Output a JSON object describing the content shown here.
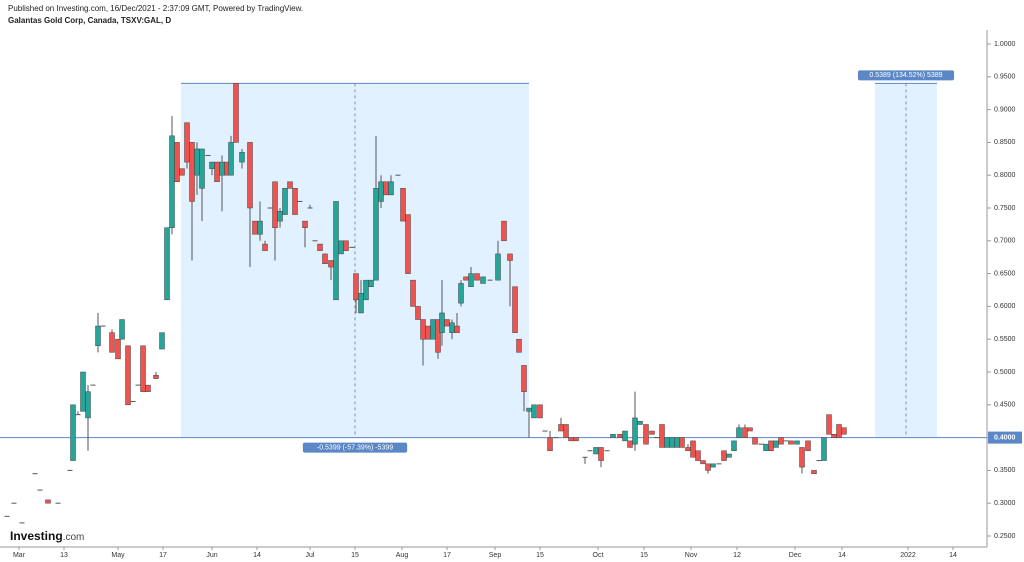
{
  "header": {
    "published": "Published on Investing.com, 16/Dec/2021 - 2:37:09 GMT, Powered by TradingView.",
    "instrument": "Galantas Gold Corp, Canada, TSXV:GAL, D"
  },
  "logo": {
    "brand": "Investing",
    "suffix": ".com"
  },
  "chart_data": {
    "type": "candlestick",
    "up_color": "#26a69a",
    "down_color": "#ef5350",
    "flat_color": "#555555",
    "xlim": [
      0,
      196
    ],
    "ylim": [
      0.25,
      1.0
    ],
    "yticks": [
      {
        "value": 0.25,
        "label": "0.2500"
      },
      {
        "value": 0.3,
        "label": "0.3000"
      },
      {
        "value": 0.35,
        "label": "0.3500"
      },
      {
        "value": 0.4,
        "label": "0.4000"
      },
      {
        "value": 0.45,
        "label": "0.4500"
      },
      {
        "value": 0.5,
        "label": "0.5000"
      },
      {
        "value": 0.55,
        "label": "0.5500"
      },
      {
        "value": 0.6,
        "label": "0.6000"
      },
      {
        "value": 0.65,
        "label": "0.6500"
      },
      {
        "value": 0.7,
        "label": "0.7000"
      },
      {
        "value": 0.75,
        "label": "0.7500"
      },
      {
        "value": 0.8,
        "label": "0.8000"
      },
      {
        "value": 0.85,
        "label": "0.8500"
      },
      {
        "value": 0.9,
        "label": "0.9000"
      },
      {
        "value": 0.95,
        "label": "0.9500"
      },
      {
        "value": 1.0,
        "label": "1.0000"
      }
    ],
    "xticks": [
      {
        "value": 2.8,
        "label": "Mar"
      },
      {
        "value": 11.8,
        "label": "13"
      },
      {
        "value": 22.6,
        "label": "May"
      },
      {
        "value": 31.6,
        "label": "17"
      },
      {
        "value": 41.4,
        "label": "Jun"
      },
      {
        "value": 50.4,
        "label": "14"
      },
      {
        "value": 61,
        "label": "Jul"
      },
      {
        "value": 70,
        "label": "15"
      },
      {
        "value": 79.4,
        "label": "Aug"
      },
      {
        "value": 88.4,
        "label": "17"
      },
      {
        "value": 98,
        "label": "Sep"
      },
      {
        "value": 107,
        "label": "15"
      },
      {
        "value": 118.6,
        "label": "Oct"
      },
      {
        "value": 127.8,
        "label": "15"
      },
      {
        "value": 137.2,
        "label": "Nov"
      },
      {
        "value": 146.4,
        "label": "12"
      },
      {
        "value": 158,
        "label": "Dec"
      },
      {
        "value": 167.4,
        "label": "14"
      },
      {
        "value": 180.6,
        "label": "2022"
      },
      {
        "value": 189.6,
        "label": "14"
      }
    ],
    "last_price": {
      "value": 0.4,
      "label": "0.4000"
    },
    "ranges": [
      {
        "x": [
          35.2,
          104.8
        ],
        "y": [
          0.94,
          0.4
        ],
        "label": "-0.5399 (-57.39%) -5399",
        "label_pos": "bottom"
      },
      {
        "x": [
          174,
          186.4
        ],
        "y": [
          0.94,
          0.4
        ],
        "label": "0.5389 (134.52%) 5389",
        "label_pos": "top"
      }
    ],
    "candles": [
      [
        0.4,
        0.28,
        0.28,
        0.28,
        0.28
      ],
      [
        1.8,
        0.3,
        0.3,
        0.3,
        0.3
      ],
      [
        3.4,
        0.27,
        0.27,
        0.27,
        0.27
      ],
      [
        6,
        0.345,
        0.345,
        0.345,
        0.345
      ],
      [
        7,
        0.32,
        0.32,
        0.32,
        0.32
      ],
      [
        8.6,
        0.305,
        0.305,
        0.3,
        0.3
      ],
      [
        10.6,
        0.3,
        0.3,
        0.3,
        0.3
      ],
      [
        13,
        0.35,
        0.35,
        0.35,
        0.35
      ],
      [
        13.6,
        0.365,
        0.45,
        0.365,
        0.45
      ],
      [
        14.6,
        0.435,
        0.44,
        0.435,
        0.435
      ],
      [
        15.6,
        0.44,
        0.5,
        0.44,
        0.5
      ],
      [
        16.6,
        0.43,
        0.48,
        0.38,
        0.47
      ],
      [
        17.6,
        0.48,
        0.48,
        0.48,
        0.48
      ],
      [
        18.6,
        0.54,
        0.59,
        0.53,
        0.57
      ],
      [
        19.6,
        0.57,
        0.57,
        0.57,
        0.57
      ],
      [
        21.4,
        0.56,
        0.565,
        0.53,
        0.53
      ],
      [
        22.6,
        0.55,
        0.55,
        0.52,
        0.52
      ],
      [
        23.4,
        0.55,
        0.58,
        0.55,
        0.58
      ],
      [
        24.6,
        0.54,
        0.54,
        0.45,
        0.45
      ],
      [
        25.6,
        0.455,
        0.455,
        0.455,
        0.455
      ],
      [
        26.6,
        0.48,
        0.48,
        0.48,
        0.48
      ],
      [
        27.6,
        0.54,
        0.54,
        0.47,
        0.47
      ],
      [
        28.6,
        0.48,
        0.48,
        0.47,
        0.47
      ],
      [
        30.2,
        0.495,
        0.5,
        0.49,
        0.49
      ],
      [
        31.4,
        0.535,
        0.56,
        0.535,
        0.56
      ],
      [
        32.4,
        0.61,
        0.72,
        0.61,
        0.72
      ],
      [
        33.4,
        0.72,
        0.89,
        0.71,
        0.86
      ],
      [
        34.4,
        0.85,
        0.85,
        0.79,
        0.79
      ],
      [
        35.4,
        0.81,
        0.81,
        0.8,
        0.8
      ],
      [
        36.4,
        0.88,
        0.88,
        0.81,
        0.82
      ],
      [
        37.4,
        0.85,
        0.85,
        0.67,
        0.76
      ],
      [
        38.4,
        0.8,
        0.85,
        0.77,
        0.84
      ],
      [
        39.4,
        0.78,
        0.84,
        0.73,
        0.84
      ],
      [
        40.6,
        0.83,
        0.83,
        0.83,
        0.83
      ],
      [
        41.4,
        0.81,
        0.82,
        0.8,
        0.82
      ],
      [
        42.4,
        0.82,
        0.82,
        0.79,
        0.79
      ],
      [
        43.4,
        0.8,
        0.83,
        0.745,
        0.82
      ],
      [
        44.4,
        0.82,
        0.82,
        0.8,
        0.8
      ],
      [
        45.2,
        0.8,
        0.86,
        0.8,
        0.85
      ],
      [
        46.2,
        0.94,
        0.94,
        0.85,
        0.85
      ],
      [
        47.4,
        0.82,
        0.84,
        0.81,
        0.835
      ],
      [
        49,
        0.85,
        0.85,
        0.66,
        0.75
      ],
      [
        50,
        0.73,
        0.73,
        0.71,
        0.71
      ],
      [
        51,
        0.71,
        0.76,
        0.7,
        0.73
      ],
      [
        52,
        0.695,
        0.7,
        0.685,
        0.685
      ],
      [
        53,
        0.75,
        0.75,
        0.75,
        0.75
      ],
      [
        54,
        0.79,
        0.79,
        0.67,
        0.72
      ],
      [
        55,
        0.73,
        0.75,
        0.72,
        0.745
      ],
      [
        56,
        0.74,
        0.78,
        0.74,
        0.78
      ],
      [
        57,
        0.79,
        0.79,
        0.78,
        0.78
      ],
      [
        58,
        0.78,
        0.78,
        0.74,
        0.74
      ],
      [
        59,
        0.76,
        0.76,
        0.76,
        0.76
      ],
      [
        60,
        0.73,
        0.73,
        0.69,
        0.72
      ],
      [
        61,
        0.75,
        0.755,
        0.75,
        0.75
      ],
      [
        62,
        0.7,
        0.7,
        0.7,
        0.7
      ],
      [
        63,
        0.695,
        0.695,
        0.685,
        0.685
      ],
      [
        64,
        0.68,
        0.68,
        0.665,
        0.665
      ],
      [
        65.2,
        0.67,
        0.67,
        0.64,
        0.66
      ],
      [
        66.2,
        0.61,
        0.76,
        0.61,
        0.76
      ],
      [
        67.2,
        0.68,
        0.7,
        0.68,
        0.7
      ],
      [
        68.2,
        0.7,
        0.7,
        0.685,
        0.685
      ],
      [
        69.4,
        0.69,
        0.69,
        0.69,
        0.69
      ],
      [
        70.2,
        0.65,
        0.65,
        0.59,
        0.61
      ],
      [
        71.2,
        0.59,
        0.64,
        0.59,
        0.62
      ],
      [
        72.2,
        0.61,
        0.64,
        0.61,
        0.64
      ],
      [
        73.2,
        0.63,
        0.64,
        0.63,
        0.64
      ],
      [
        74.2,
        0.64,
        0.86,
        0.64,
        0.78
      ],
      [
        75.2,
        0.76,
        0.8,
        0.75,
        0.79
      ],
      [
        76.2,
        0.79,
        0.79,
        0.77,
        0.77
      ],
      [
        77.2,
        0.77,
        0.8,
        0.77,
        0.79
      ],
      [
        78.6,
        0.8,
        0.8,
        0.8,
        0.8
      ],
      [
        79.6,
        0.78,
        0.78,
        0.73,
        0.73
      ],
      [
        80.6,
        0.74,
        0.74,
        0.65,
        0.65
      ],
      [
        81.6,
        0.64,
        0.64,
        0.6,
        0.6
      ],
      [
        82.6,
        0.6,
        0.6,
        0.58,
        0.58
      ],
      [
        83.6,
        0.58,
        0.58,
        0.51,
        0.55
      ],
      [
        84.6,
        0.57,
        0.57,
        0.55,
        0.55
      ],
      [
        85.6,
        0.55,
        0.58,
        0.55,
        0.58
      ],
      [
        86.6,
        0.58,
        0.58,
        0.52,
        0.53
      ],
      [
        87.4,
        0.56,
        0.64,
        0.54,
        0.59
      ],
      [
        88.4,
        0.58,
        0.58,
        0.57,
        0.57
      ],
      [
        89.4,
        0.56,
        0.58,
        0.55,
        0.575
      ],
      [
        90.4,
        0.57,
        0.59,
        0.56,
        0.56
      ],
      [
        91.2,
        0.605,
        0.64,
        0.6,
        0.635
      ],
      [
        92.2,
        0.645,
        0.645,
        0.64,
        0.64
      ],
      [
        93.2,
        0.63,
        0.66,
        0.63,
        0.65
      ],
      [
        94.4,
        0.65,
        0.65,
        0.64,
        0.64
      ],
      [
        95.6,
        0.635,
        0.645,
        0.635,
        0.645
      ],
      [
        97,
        0.64,
        0.64,
        0.64,
        0.64
      ],
      [
        98.6,
        0.64,
        0.7,
        0.64,
        0.68
      ],
      [
        99.8,
        0.73,
        0.73,
        0.7,
        0.7
      ],
      [
        101,
        0.68,
        0.68,
        0.6,
        0.67
      ],
      [
        102,
        0.63,
        0.63,
        0.56,
        0.56
      ],
      [
        102.8,
        0.55,
        0.55,
        0.53,
        0.53
      ],
      [
        103.8,
        0.51,
        0.51,
        0.44,
        0.47
      ],
      [
        104.8,
        0.44,
        0.445,
        0.4,
        0.445
      ],
      [
        105.8,
        0.43,
        0.45,
        0.43,
        0.45
      ],
      [
        107,
        0.45,
        0.45,
        0.43,
        0.43
      ],
      [
        108,
        0.41,
        0.41,
        0.41,
        0.41
      ],
      [
        109,
        0.4,
        0.41,
        0.38,
        0.38
      ],
      [
        110.2,
        0.4,
        0.4,
        0.4,
        0.4
      ],
      [
        111.2,
        0.42,
        0.43,
        0.41,
        0.41
      ],
      [
        112.2,
        0.42,
        0.42,
        0.4,
        0.4
      ],
      [
        113.2,
        0.4,
        0.4,
        0.395,
        0.395
      ],
      [
        114.2,
        0.4,
        0.4,
        0.395,
        0.395
      ],
      [
        116,
        0.37,
        0.37,
        0.36,
        0.37
      ],
      [
        117,
        0.38,
        0.38,
        0.38,
        0.38
      ],
      [
        118.2,
        0.375,
        0.385,
        0.375,
        0.385
      ],
      [
        119.2,
        0.385,
        0.385,
        0.355,
        0.365
      ],
      [
        120.4,
        0.38,
        0.38,
        0.38,
        0.38
      ],
      [
        121.6,
        0.4,
        0.405,
        0.4,
        0.405
      ],
      [
        123,
        0.405,
        0.405,
        0.4,
        0.4
      ],
      [
        124,
        0.395,
        0.41,
        0.395,
        0.41
      ],
      [
        125,
        0.395,
        0.395,
        0.385,
        0.385
      ],
      [
        126,
        0.39,
        0.47,
        0.38,
        0.43
      ],
      [
        127,
        0.42,
        0.425,
        0.42,
        0.425
      ],
      [
        128.2,
        0.42,
        0.42,
        0.39,
        0.39
      ],
      [
        129.4,
        0.41,
        0.41,
        0.405,
        0.405
      ],
      [
        130.4,
        0.4,
        0.4,
        0.4,
        0.4
      ],
      [
        131.4,
        0.42,
        0.42,
        0.385,
        0.385
      ],
      [
        132.4,
        0.385,
        0.4,
        0.385,
        0.4
      ],
      [
        133.4,
        0.385,
        0.4,
        0.385,
        0.4
      ],
      [
        134.4,
        0.385,
        0.4,
        0.385,
        0.4
      ],
      [
        135.4,
        0.4,
        0.4,
        0.385,
        0.385
      ],
      [
        136.6,
        0.385,
        0.39,
        0.38,
        0.38
      ],
      [
        137.6,
        0.395,
        0.395,
        0.37,
        0.37
      ],
      [
        138.6,
        0.38,
        0.38,
        0.365,
        0.365
      ],
      [
        139.6,
        0.365,
        0.365,
        0.36,
        0.36
      ],
      [
        140.6,
        0.36,
        0.36,
        0.345,
        0.35
      ],
      [
        141.6,
        0.355,
        0.36,
        0.355,
        0.36
      ],
      [
        142.8,
        0.36,
        0.36,
        0.36,
        0.36
      ],
      [
        143.8,
        0.38,
        0.38,
        0.365,
        0.365
      ],
      [
        144.8,
        0.37,
        0.375,
        0.37,
        0.375
      ],
      [
        145.8,
        0.38,
        0.395,
        0.38,
        0.395
      ],
      [
        146.8,
        0.4,
        0.42,
        0.4,
        0.415
      ],
      [
        148,
        0.415,
        0.42,
        0.4,
        0.4
      ],
      [
        149,
        0.415,
        0.415,
        0.41,
        0.41
      ],
      [
        150,
        0.4,
        0.4,
        0.39,
        0.39
      ],
      [
        151.2,
        0.39,
        0.39,
        0.39,
        0.39
      ],
      [
        152.2,
        0.38,
        0.39,
        0.38,
        0.39
      ],
      [
        153.2,
        0.395,
        0.395,
        0.38,
        0.38
      ],
      [
        154.2,
        0.385,
        0.395,
        0.385,
        0.395
      ],
      [
        155.2,
        0.4,
        0.4,
        0.39,
        0.39
      ],
      [
        156.2,
        0.395,
        0.395,
        0.395,
        0.395
      ],
      [
        157.2,
        0.395,
        0.395,
        0.39,
        0.39
      ],
      [
        158.4,
        0.39,
        0.395,
        0.39,
        0.395
      ],
      [
        159.4,
        0.385,
        0.385,
        0.345,
        0.355
      ],
      [
        160.6,
        0.395,
        0.395,
        0.38,
        0.38
      ],
      [
        161.8,
        0.35,
        0.35,
        0.345,
        0.345
      ],
      [
        162.8,
        0.365,
        0.365,
        0.365,
        0.365
      ],
      [
        163.8,
        0.365,
        0.4,
        0.365,
        0.4
      ],
      [
        164.8,
        0.435,
        0.435,
        0.405,
        0.405
      ],
      [
        165.8,
        0.405,
        0.405,
        0.4,
        0.4
      ],
      [
        166.8,
        0.42,
        0.42,
        0.4,
        0.4
      ],
      [
        167.8,
        0.415,
        0.415,
        0.405,
        0.405
      ]
    ]
  }
}
